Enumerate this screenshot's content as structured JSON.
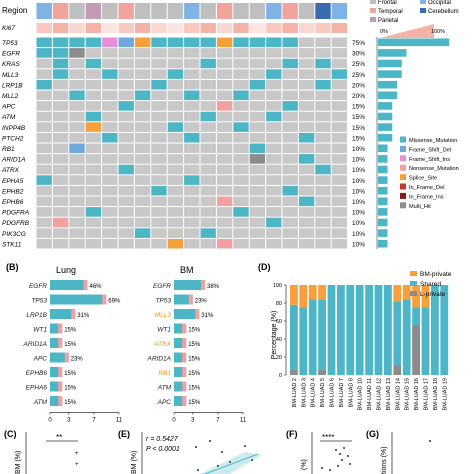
{
  "panel_a": {
    "region_label": "Region",
    "ki67_label": "Ki67",
    "genes": [
      "TP53",
      "EGFR",
      "KRAS",
      "MLL3",
      "LRP1B",
      "MLL2",
      "APC",
      "ATM",
      "INPP4B",
      "PTCH2",
      "RB1",
      "ARID1A",
      "ATRX",
      "EPHA5",
      "EPHB2",
      "EPHB6",
      "PDGFRA",
      "PDGFRB",
      "PIK3CG",
      "STK11"
    ],
    "percents": [
      "75%",
      "30%",
      "25%",
      "25%",
      "20%",
      "20%",
      "15%",
      "15%",
      "15%",
      "15%",
      "10%",
      "10%",
      "10%",
      "10%",
      "10%",
      "10%",
      "10%",
      "10%",
      "10%",
      "10%"
    ],
    "bar_fractions": [
      0.75,
      0.3,
      0.25,
      0.25,
      0.2,
      0.2,
      0.15,
      0.15,
      0.15,
      0.15,
      0.1,
      0.1,
      0.1,
      0.1,
      0.1,
      0.1,
      0.1,
      0.1,
      0.1,
      0.1
    ],
    "region_legend": [
      {
        "label": "Frontal",
        "color": "#bfbfbf"
      },
      {
        "label": "Occipital",
        "color": "#7fb2e5"
      },
      {
        "label": "Temporal",
        "color": "#f2a39b"
      },
      {
        "label": "Cerebellum",
        "color": "#3a6bb0"
      },
      {
        "label": "Parietal",
        "color": "#c49ab5"
      }
    ],
    "ki67_scale": [
      "0%",
      "100%"
    ],
    "mutation_legend": [
      {
        "label": "Missense_Mutation",
        "color": "#4db6c6"
      },
      {
        "label": "Frame_Shift_Del",
        "color": "#6fa8dc"
      },
      {
        "label": "Frame_Shift_Ins",
        "color": "#e88fd8"
      },
      {
        "label": "Nonsense_Mutation",
        "color": "#f4a0a0"
      },
      {
        "label": "Splice_Site",
        "color": "#f5a03b"
      },
      {
        "label": "In_Frame_Del",
        "color": "#c0392b"
      },
      {
        "label": "In_Frame_Ins",
        "color": "#8b1a1a"
      },
      {
        "label": "Multi_Hit",
        "color": "#8c8c8c"
      }
    ]
  },
  "panel_b": {
    "label": "(B)",
    "lung": {
      "title": "Lung",
      "genes": [
        "EGFR",
        "TP53",
        "LRP1B",
        "WT1",
        "ARID1A",
        "APC",
        "EPHB6",
        "EPHA6",
        "ATM"
      ],
      "values": [
        46,
        69,
        31,
        15,
        15,
        23,
        15,
        15,
        15
      ],
      "percents": [
        "46%",
        "69%",
        "31%",
        "15%",
        "15%",
        "23%",
        "15%",
        "15%",
        "15%"
      ]
    },
    "bm": {
      "title": "BM",
      "genes": [
        "EGFR",
        "TP53",
        "MLL3",
        "WT1",
        "ATRX",
        "ARID1A",
        "RB1",
        "ATM",
        "APC"
      ],
      "values": [
        38,
        23,
        31,
        15,
        15,
        15,
        15,
        15,
        15
      ],
      "percents": [
        "38%",
        "23%",
        "31%",
        "15%",
        "15%",
        "15%",
        "15%",
        "15%",
        "15%"
      ]
    },
    "ticks": [
      "0",
      "3",
      "7",
      "11"
    ]
  },
  "panel_d": {
    "label": "(D)",
    "chart_data": {
      "type": "bar",
      "ylabel": "Percentage (%)",
      "ylim": [
        0,
        100
      ],
      "yticks": [
        "0",
        "20",
        "40",
        "60",
        "80",
        "100"
      ],
      "categories": [
        "BM-LUAD 2",
        "BM-LUAD 3",
        "BM-LUAD 4",
        "BM-LUAD 5",
        "BM-LUAD 6",
        "BM-LUAD 7",
        "BM-LUAD 8",
        "BM-LUAD 10",
        "BM-LUAD 11",
        "BM-LUAD 12",
        "BM-LUAD 13",
        "BM-LUAD 14",
        "BM-LUAD 15",
        "BM-LUAD 16",
        "BM-LUAD 17",
        "BM-LUAD 18",
        "BM-LUAD 19"
      ],
      "series": [
        {
          "name": "L-private",
          "color": "#8c8c8c",
          "values": [
            6,
            0,
            0,
            6,
            0,
            0,
            0,
            0,
            0,
            0,
            0,
            10,
            0,
            55,
            0,
            0,
            0
          ]
        },
        {
          "name": "Shared",
          "color": "#4db6c6",
          "values": [
            72,
            75,
            84,
            78,
            100,
            100,
            100,
            100,
            100,
            100,
            100,
            72,
            84,
            20,
            75,
            100,
            100
          ]
        },
        {
          "name": "BM-private",
          "color": "#f5a03b",
          "values": [
            22,
            25,
            16,
            16,
            0,
            0,
            0,
            0,
            0,
            0,
            0,
            18,
            16,
            25,
            25,
            0,
            0
          ]
        }
      ],
      "legend": [
        "BM-private",
        "Shared",
        "L-private"
      ]
    }
  },
  "panel_c": {
    "label": "(C)",
    "axis": "BM (%)",
    "sig": "**"
  },
  "panel_e": {
    "label": "(E)",
    "axis": "BM (%)",
    "r_text": "r = 0.5427",
    "p_text": "P < 0.0001"
  },
  "panel_f": {
    "label": "(F)",
    "axis": "(%)",
    "sig": "****"
  },
  "panel_g": {
    "label": "(G)",
    "axis": "tions (%)"
  }
}
